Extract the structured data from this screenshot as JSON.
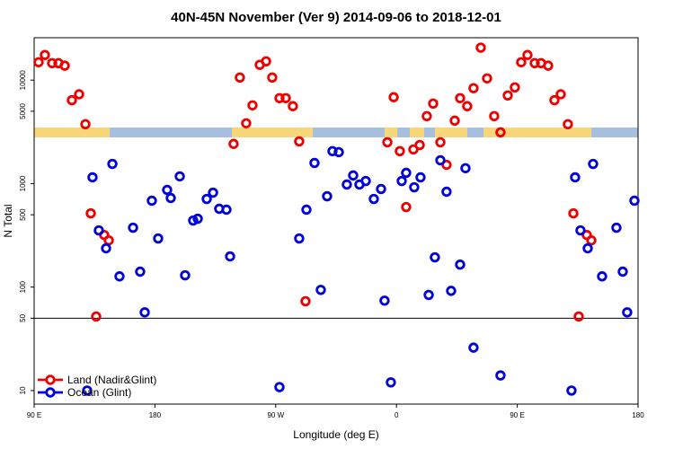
{
  "chart_data": {
    "type": "scatter",
    "title": "40N-45N November (Ver 9)   2014-09-06 to 2018-12-01",
    "xlabel": "Longitude (deg E)",
    "ylabel": "N Total",
    "xlim": [
      90,
      540
    ],
    "xticks": [
      {
        "value": 90,
        "label": "90 E"
      },
      180,
      {
        "value": 270,
        "label": "90 W"
      },
      {
        "value": 360,
        "label": "0"
      },
      {
        "value": 450,
        "label": "90 E"
      },
      {
        "value": 540,
        "label": "180"
      }
    ],
    "ylim": [
      7.4,
      25700
    ],
    "yticks": [
      10,
      50,
      100,
      500,
      1000,
      5000,
      10000
    ],
    "yscale": "log",
    "hline": 50,
    "legend": "lower left",
    "series": [
      {
        "name": "Land (Nadir&Glint)",
        "color": "#ee0000",
        "x": [
          93.3,
          98,
          103.4,
          108.1,
          112.8,
          118.1,
          123.5,
          128.2,
          132.2,
          136.2,
          142.2,
          145.6,
          238.6,
          243.3,
          248,
          252.7,
          258.1,
          262.8,
          267.4,
          272.8,
          277.5,
          282.8,
          287.5,
          292.2,
          353.2,
          357.9,
          362.5,
          367.2,
          372.6,
          377.3,
          382.6,
          387.3,
          392.7,
          397.3,
          403.4,
          407.4,
          412.7,
          417.4,
          422.8,
          427.5,
          432.8,
          437.5,
          442.9,
          448.2,
          452.9,
          457.6,
          463,
          467.7,
          473,
          477.7,
          482.4,
          487.7,
          491.8,
          495.8,
          501.8,
          505.2
        ],
        "values": [
          14900,
          17500,
          14600,
          14600,
          13800,
          6400,
          7300,
          3750,
          516,
          52,
          319,
          283,
          2420,
          10600,
          3830,
          5710,
          14060,
          15200,
          10600,
          6700,
          6700,
          5600,
          2560,
          73,
          2510,
          6840,
          2060,
          594,
          2140,
          2360,
          4490,
          5940,
          2510,
          1520,
          4060,
          6700,
          5600,
          8360,
          20600,
          10400,
          4490,
          3130,
          7110,
          8510,
          14900,
          17500,
          14600,
          14600,
          13800,
          6400,
          7300,
          3750,
          516,
          52,
          319,
          283
        ]
      },
      {
        "name": "Ocean (Glint)",
        "color": "#0000dd",
        "x": [
          129.5,
          133.5,
          138.2,
          143.6,
          148.3,
          153.6,
          163.7,
          169,
          172.4,
          177.7,
          182.4,
          189.1,
          191.8,
          198.5,
          202.5,
          208.5,
          211.9,
          218.6,
          223.3,
          227.9,
          233.3,
          236,
          272.8,
          287.5,
          292.9,
          298.9,
          303.6,
          308.3,
          312.3,
          317,
          323,
          327.7,
          332.4,
          337.1,
          343.1,
          348.5,
          351.1,
          355.8,
          363.9,
          367.2,
          373.2,
          377.9,
          384,
          388.6,
          392.7,
          397.3,
          400.7,
          407.4,
          411.4,
          417.4,
          437.5,
          490.4,
          493.1,
          497.1,
          502.5,
          506.5,
          513.2,
          523.9,
          528.6,
          531.9,
          537.3
        ],
        "values": [
          10,
          1150,
          353,
          237,
          1550,
          127,
          375,
          141,
          57,
          684,
          295,
          869,
          726,
          1175,
          130,
          440,
          458,
          711,
          818,
          571,
          560,
          198,
          10.8,
          295,
          560,
          1585,
          94,
          755,
          2060,
          2015,
          980,
          1200,
          980,
          1060,
          711,
          887,
          74,
          12,
          1060,
          1270,
          922,
          1150,
          84,
          194,
          1680,
          835,
          92,
          165,
          1410,
          26,
          14,
          10,
          1150,
          353,
          237,
          1550,
          127,
          375,
          141,
          57,
          684
        ]
      }
    ]
  }
}
